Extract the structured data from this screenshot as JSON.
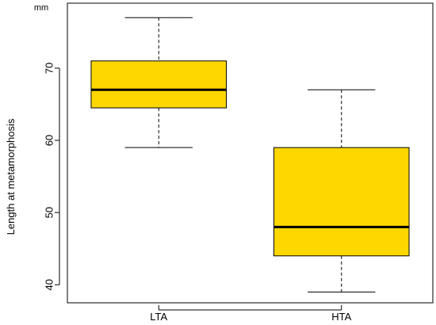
{
  "chart_data": {
    "type": "boxplot",
    "title": "",
    "xlabel": "",
    "ylabel": "Length at metamorphosis",
    "unit": "mm",
    "categories": [
      "LTA",
      "HTA"
    ],
    "boxes": [
      {
        "category": "LTA",
        "min": 59,
        "q1": 64.5,
        "median": 67,
        "q3": 71,
        "max": 77
      },
      {
        "category": "HTA",
        "min": 39,
        "q1": 44,
        "median": 48,
        "q3": 59,
        "max": 67
      }
    ],
    "yticks": [
      40,
      50,
      60,
      70
    ],
    "ylim": [
      37.5,
      79
    ],
    "grid": false,
    "colors": {
      "box_fill": "#FFD700",
      "stroke": "#000000"
    }
  }
}
